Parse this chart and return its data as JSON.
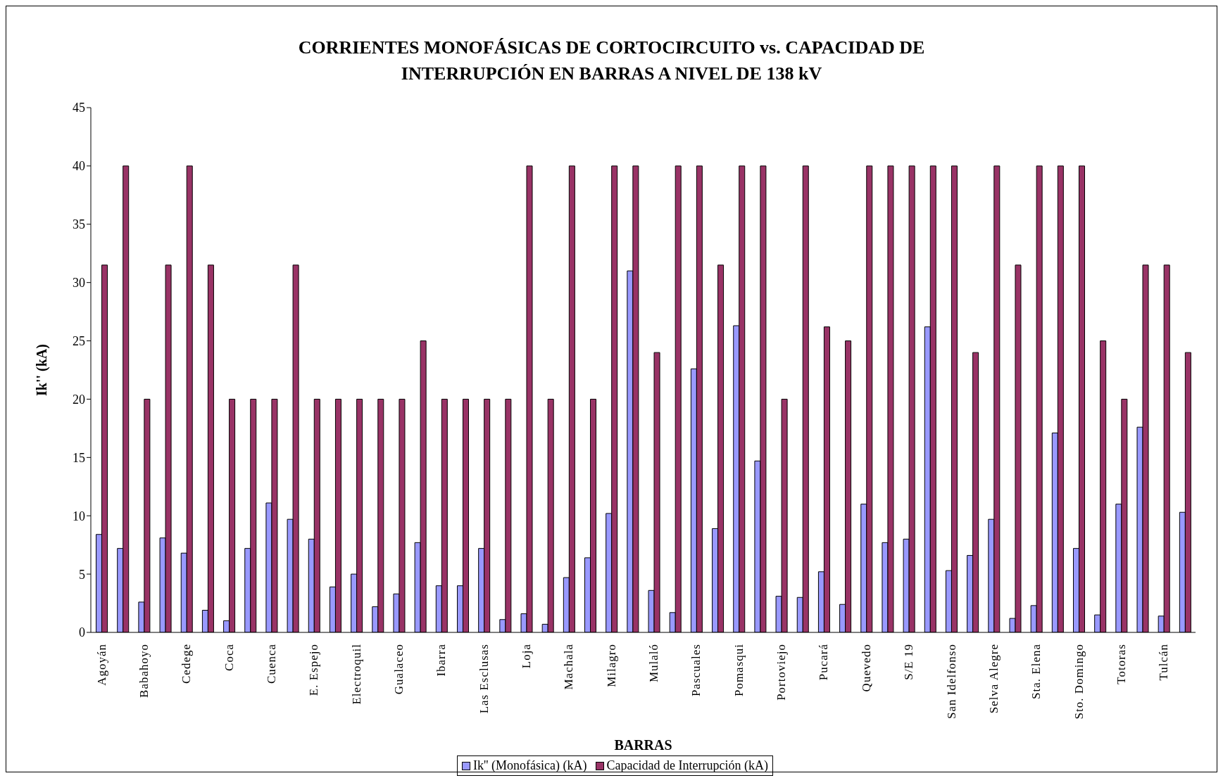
{
  "chart_data": {
    "type": "bar",
    "title": "CORRIENTES MONOFÁSICAS DE CORTOCIRCUITO vs. CAPACIDAD DE INTERRUPCIÓN EN BARRAS A NIVEL DE 138 kV",
    "xlabel": "BARRAS",
    "ylabel": "Ik'' (kA)",
    "categories": [
      "Agoyán",
      null,
      "Babahoyo",
      null,
      "Cedege",
      null,
      "Coca",
      null,
      "Cuenca",
      null,
      "E. Espejo",
      null,
      "Electroquil",
      null,
      "Gualaceo",
      null,
      "Ibarra",
      null,
      "Las Esclusas",
      null,
      "Loja",
      null,
      "Machala",
      null,
      "Milagro",
      null,
      "Mulaló",
      null,
      "Pascuales",
      null,
      "Pomasqui",
      null,
      "Portoviejo",
      null,
      "Pucará",
      null,
      "Quevedo",
      null,
      "S/E 19",
      null,
      "San Idelfonso",
      null,
      "Selva Alegre",
      null,
      "Sta. Elena",
      null,
      "Sto. Domingo",
      null,
      "Totoras",
      null,
      "Tulcán",
      null
    ],
    "series": [
      {
        "name": "Ik'' (Monofásica) (kA)",
        "color": "#9999ff",
        "values": [
          8.4,
          7.2,
          2.6,
          8.1,
          6.8,
          1.9,
          1.0,
          7.2,
          11.1,
          9.7,
          8.0,
          3.9,
          5.0,
          2.2,
          3.3,
          7.7,
          4.0,
          4.0,
          7.2,
          1.1,
          1.6,
          0.7,
          4.7,
          6.4,
          10.2,
          31.0,
          3.6,
          1.7,
          22.6,
          8.9,
          26.3,
          14.7,
          3.1,
          3.0,
          5.2,
          2.4,
          11.0,
          7.7,
          8.0,
          26.2,
          5.3,
          6.6,
          9.7,
          1.2,
          2.3,
          17.1,
          7.2,
          1.5,
          11.0,
          17.6,
          1.4,
          10.3
        ]
      },
      {
        "name": "Capacidad de Interrupción (kA)",
        "color": "#993366",
        "values": [
          31.5,
          40,
          20,
          31.5,
          40,
          31.5,
          20,
          20,
          20,
          31.5,
          20,
          20,
          20,
          20,
          20,
          25,
          20,
          20,
          20,
          20,
          40,
          20,
          40,
          20,
          40,
          40,
          24,
          40,
          40,
          31.5,
          40,
          40,
          20,
          40,
          26.2,
          25,
          40,
          40,
          40,
          40,
          40,
          24,
          40,
          31.5,
          40,
          40,
          40,
          25,
          20,
          31.5,
          31.5,
          24
        ]
      }
    ],
    "ylim": [
      0,
      45
    ],
    "yticks": [
      0,
      5,
      10,
      15,
      20,
      25,
      30,
      35,
      40,
      45
    ],
    "grid": false,
    "legend": "bottom"
  }
}
